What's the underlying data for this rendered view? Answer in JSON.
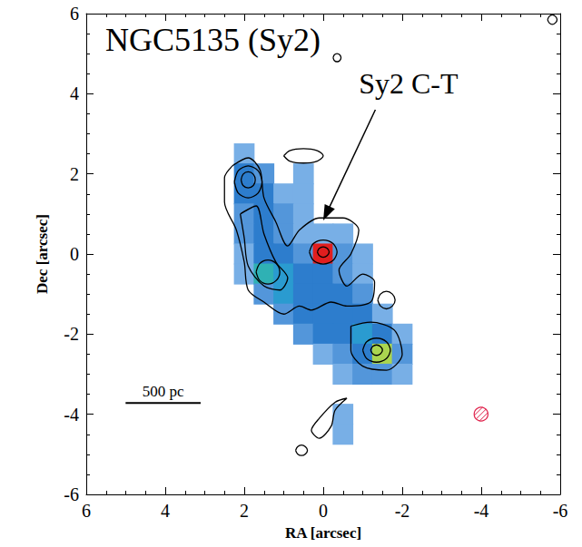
{
  "chart_data": {
    "type": "heatmap",
    "title": "NGC5135 (Sy2)",
    "x_label": "RA [arcsec]",
    "y_label": "Dec [arcsec]",
    "xlim": [
      6,
      -6
    ],
    "xticks": [
      6,
      4,
      2,
      0,
      -2,
      -4,
      -6
    ],
    "ylim": [
      -6,
      6
    ],
    "yticks": [
      -6,
      -4,
      -2,
      0,
      2,
      4,
      6
    ],
    "grid": false,
    "annotations": [
      {
        "text": "Sy2 C-T"
      }
    ],
    "scale_bar": {
      "label": "500 pc",
      "length": 1.9
    },
    "beam": {
      "diameter": 0.35
    },
    "zlim": [
      0,
      10
    ],
    "image": {
      "ra": [
        2.5,
        2.0,
        1.5,
        1.0,
        0.5,
        0.0,
        -0.5,
        -1.0,
        -1.5,
        -2.0
      ],
      "dec": [
        2.5,
        2.0,
        1.5,
        1.0,
        0.5,
        0.0,
        -0.5,
        -1.0,
        -1.5,
        -2.0,
        -2.5,
        -3.0,
        -3.5,
        -4.0,
        -4.5
      ],
      "values": [
        [
          0,
          1,
          0,
          0,
          0,
          0,
          0,
          0,
          0,
          0
        ],
        [
          0,
          3,
          2,
          0,
          1,
          0,
          0,
          0,
          0,
          0
        ],
        [
          0,
          3,
          3,
          1,
          1,
          0,
          0,
          0,
          0,
          0
        ],
        [
          0,
          2,
          3,
          2,
          1,
          0,
          0,
          0,
          0,
          0
        ],
        [
          0,
          2,
          3,
          2,
          1,
          1,
          1,
          0,
          0,
          0
        ],
        [
          0,
          1,
          3,
          3,
          2,
          10,
          2,
          1,
          0,
          0
        ],
        [
          0,
          1,
          5,
          4,
          3,
          3,
          2,
          1,
          0,
          0
        ],
        [
          0,
          0,
          2,
          4,
          3,
          3,
          3,
          2,
          0,
          0
        ],
        [
          0,
          0,
          0,
          2,
          3,
          3,
          3,
          3,
          1,
          0
        ],
        [
          0,
          0,
          0,
          0,
          2,
          3,
          3,
          4,
          3,
          1
        ],
        [
          0,
          0,
          0,
          0,
          0,
          1,
          2,
          3,
          7,
          2
        ],
        [
          0,
          0,
          0,
          0,
          0,
          0,
          1,
          2,
          2,
          1
        ],
        [
          0,
          0,
          0,
          0,
          0,
          0,
          0,
          0,
          0,
          0
        ],
        [
          0,
          0,
          0,
          0,
          0,
          0,
          1,
          0,
          0,
          0
        ],
        [
          0,
          0,
          0,
          0,
          0,
          0,
          1,
          0,
          0,
          0
        ]
      ]
    },
    "contours": [
      [
        [
          2.3,
          2.2
        ],
        [
          1.9,
          2.4
        ],
        [
          1.6,
          2.1
        ],
        [
          1.5,
          1.4
        ],
        [
          1.2,
          0.8
        ],
        [
          0.9,
          0.2
        ],
        [
          0.6,
          0.6
        ],
        [
          0.1,
          0.9
        ],
        [
          -0.5,
          0.9
        ],
        [
          -0.9,
          0.6
        ],
        [
          -0.7,
          0.0
        ],
        [
          -0.4,
          -0.4
        ],
        [
          -0.6,
          -0.8
        ],
        [
          -1.0,
          -0.5
        ],
        [
          -1.3,
          -0.7
        ],
        [
          -1.2,
          -1.2
        ],
        [
          -0.6,
          -1.3
        ],
        [
          -0.2,
          -1.2
        ],
        [
          0.3,
          -1.4
        ],
        [
          0.6,
          -1.3
        ],
        [
          1.0,
          -1.5
        ],
        [
          1.5,
          -1.2
        ],
        [
          1.9,
          -0.9
        ],
        [
          2.0,
          -0.2
        ],
        [
          2.2,
          0.6
        ],
        [
          2.5,
          1.3
        ],
        [
          2.5,
          1.9
        ],
        [
          2.3,
          2.2
        ]
      ],
      [
        [
          2.1,
          1.0
        ],
        [
          1.7,
          1.2
        ],
        [
          1.5,
          0.5
        ],
        [
          1.2,
          -0.2
        ],
        [
          0.9,
          -0.6
        ],
        [
          1.1,
          -0.9
        ],
        [
          1.5,
          -0.8
        ],
        [
          1.9,
          -0.3
        ],
        [
          2.0,
          0.4
        ],
        [
          2.1,
          1.0
        ]
      ],
      [
        [
          2.25,
          1.8
        ],
        [
          2.15,
          2.08
        ],
        [
          1.9,
          2.2
        ],
        [
          1.65,
          2.08
        ],
        [
          1.55,
          1.8
        ],
        [
          1.65,
          1.52
        ],
        [
          1.9,
          1.4
        ],
        [
          2.15,
          1.52
        ],
        [
          2.25,
          1.8
        ]
      ],
      [
        [
          2.08,
          1.85
        ],
        [
          2.03,
          1.99
        ],
        [
          1.9,
          2.05
        ],
        [
          1.77,
          1.99
        ],
        [
          1.72,
          1.85
        ],
        [
          1.77,
          1.71
        ],
        [
          1.9,
          1.65
        ],
        [
          2.03,
          1.71
        ],
        [
          2.08,
          1.85
        ]
      ],
      [
        [
          1.7,
          -0.45
        ],
        [
          1.61,
          -0.24
        ],
        [
          1.4,
          -0.15
        ],
        [
          1.19,
          -0.24
        ],
        [
          1.1,
          -0.45
        ],
        [
          1.19,
          -0.66
        ],
        [
          1.4,
          -0.75
        ],
        [
          1.61,
          -0.66
        ],
        [
          1.7,
          -0.45
        ]
      ],
      [
        [
          0.35,
          0.05
        ],
        [
          0.25,
          0.26
        ],
        [
          0,
          0.35
        ],
        [
          -0.25,
          0.26
        ],
        [
          -0.35,
          0.05
        ],
        [
          -0.25,
          -0.16
        ],
        [
          0,
          -0.25
        ],
        [
          0.25,
          -0.16
        ],
        [
          0.35,
          0.05
        ]
      ],
      [
        [
          0.15,
          0.05
        ],
        [
          0.1,
          0.14
        ],
        [
          0,
          0.18
        ],
        [
          -0.1,
          0.14
        ],
        [
          -0.15,
          0.05
        ],
        [
          -0.1,
          -0.04
        ],
        [
          0,
          -0.08
        ],
        [
          0.1,
          -0.04
        ],
        [
          0.15,
          0.05
        ]
      ],
      [
        [
          1.0,
          2.45
        ],
        [
          0.85,
          2.58
        ],
        [
          0.5,
          2.63
        ],
        [
          0.15,
          2.58
        ],
        [
          0,
          2.45
        ],
        [
          0.15,
          2.32
        ],
        [
          0.5,
          2.27
        ],
        [
          0.85,
          2.32
        ],
        [
          1.0,
          2.45
        ]
      ],
      [
        [
          -0.7,
          -1.8
        ],
        [
          -1.2,
          -1.7
        ],
        [
          -1.8,
          -1.9
        ],
        [
          -2.0,
          -2.5
        ],
        [
          -1.6,
          -2.9
        ],
        [
          -1.0,
          -2.8
        ],
        [
          -0.7,
          -2.4
        ],
        [
          -0.7,
          -1.8
        ]
      ],
      [
        [
          -1.0,
          -2.4
        ],
        [
          -1.1,
          -2.19
        ],
        [
          -1.35,
          -2.1
        ],
        [
          -1.6,
          -2.19
        ],
        [
          -1.7,
          -2.4
        ],
        [
          -1.6,
          -2.61
        ],
        [
          -1.35,
          -2.7
        ],
        [
          -1.1,
          -2.61
        ],
        [
          -1.0,
          -2.4
        ]
      ],
      [
        [
          -1.2,
          -2.4
        ],
        [
          -1.25,
          -2.31
        ],
        [
          -1.35,
          -2.27
        ],
        [
          -1.45,
          -2.31
        ],
        [
          -1.5,
          -2.4
        ],
        [
          -1.45,
          -2.49
        ],
        [
          -1.35,
          -2.53
        ],
        [
          -1.25,
          -2.49
        ],
        [
          -1.2,
          -2.4
        ]
      ],
      [
        [
          -1.38,
          -1.15
        ],
        [
          -1.45,
          -1.0
        ],
        [
          -1.6,
          -0.93
        ],
        [
          -1.75,
          -1.0
        ],
        [
          -1.82,
          -1.15
        ],
        [
          -1.75,
          -1.3
        ],
        [
          -1.6,
          -1.37
        ],
        [
          -1.45,
          -1.3
        ],
        [
          -1.38,
          -1.15
        ]
      ],
      [
        [
          -0.6,
          -3.6
        ],
        [
          -0.3,
          -3.9
        ],
        [
          -0.2,
          -4.3
        ],
        [
          0.1,
          -4.6
        ],
        [
          0.3,
          -4.4
        ],
        [
          0.1,
          -4.1
        ],
        [
          -0.3,
          -3.7
        ],
        [
          -0.6,
          -3.6
        ]
      ],
      [
        [
          0.7,
          -4.9
        ],
        [
          0.65,
          -4.81
        ],
        [
          0.55,
          -4.77
        ],
        [
          0.45,
          -4.81
        ],
        [
          0.4,
          -4.9
        ],
        [
          0.45,
          -4.99
        ],
        [
          0.55,
          -5.03
        ],
        [
          0.65,
          -4.99
        ],
        [
          0.7,
          -4.9
        ]
      ],
      [
        [
          -0.25,
          4.9
        ],
        [
          -0.28,
          4.97
        ],
        [
          -0.35,
          5.0
        ],
        [
          -0.42,
          4.97
        ],
        [
          -0.45,
          4.9
        ],
        [
          -0.42,
          4.83
        ],
        [
          -0.35,
          4.8
        ],
        [
          -0.28,
          4.83
        ],
        [
          -0.25,
          4.9
        ]
      ],
      [
        [
          -5.68,
          5.85
        ],
        [
          -5.72,
          5.93
        ],
        [
          -5.8,
          5.97
        ],
        [
          -5.88,
          5.93
        ],
        [
          -5.92,
          5.85
        ],
        [
          -5.88,
          5.77
        ],
        [
          -5.8,
          5.73
        ],
        [
          -5.72,
          5.77
        ],
        [
          -5.68,
          5.85
        ]
      ]
    ]
  }
}
